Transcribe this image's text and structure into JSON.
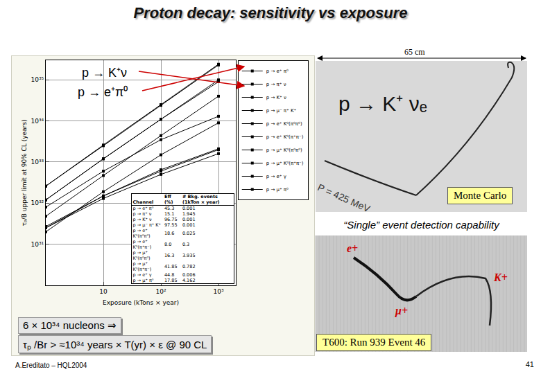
{
  "slide": {
    "title": "Proton decay: sensitivity vs exposure",
    "arrow_labels": [
      "p → K⁺ν",
      "p → e⁺π⁰"
    ],
    "formula_lines": [
      "6 × 10³⁴ nucleons ⇒",
      "τₚ /Br > ≈10³⁴ years × T(yr) × ε @ 90 CL"
    ],
    "footer": "A.Ereditato – HQL2004",
    "page": "41",
    "scale_label": "65 cm",
    "mc_title": "p → K⁺ νₑ",
    "mc_momentum": "P = 425 MeV",
    "mc_tag": "Monte Carlo",
    "caption": "“Single” event detection capability",
    "event_labels": [
      "e+",
      "K+",
      "μ+"
    ],
    "event_tag": "T600: Run 939 Event 46"
  },
  "table": {
    "header": [
      "Channel",
      "Eff (%)",
      "# Bkg. events (1kTon × year)"
    ],
    "rows": [
      [
        "p → e⁺ π⁰",
        "45.3",
        "0.001"
      ],
      [
        "p → π⁺ ν",
        "15.1",
        "1.945"
      ],
      [
        "p → K⁺ ν",
        "96.75",
        "0.001"
      ],
      [
        "p → μ⁻ π⁺ K⁺",
        "97.55",
        "0.001"
      ],
      [
        "p → e⁺ K⁰(π⁰π⁰)",
        "18.6",
        "0.025"
      ],
      [
        "p → e⁺ K⁰(π⁺π⁻)",
        "8.0",
        "0.3"
      ],
      [
        "p → μ⁺ K⁰(π⁰π⁰)",
        "16.3",
        "3.935"
      ],
      [
        "p → μ⁺ K⁰(π⁺π⁻)",
        "41.85",
        "0.782"
      ],
      [
        "p → e⁺ γ",
        "44.8",
        "0.006"
      ],
      [
        "p → μ⁺ π⁰",
        "17.85",
        "4.162"
      ]
    ]
  },
  "chart_data": {
    "type": "line",
    "x_label": "Exposure (kTons × year)",
    "y_label": "τₚ/B upper limit at 90% CL (years)",
    "x": [
      1,
      10,
      100,
      1000
    ],
    "series": [
      {
        "name": "p → e⁺ π⁰",
        "color": "#000000",
        "values": [
          1.2e+32,
          1.2e+33,
          1.1e+34,
          1e+35
        ]
      },
      {
        "name": "p → π⁺ ν",
        "color": "#000000",
        "values": [
          2.5e+31,
          1.3e+32,
          5e+32,
          1.6e+33
        ]
      },
      {
        "name": "p → K⁺ ν",
        "color": "#000000",
        "values": [
          2.6e+32,
          2.5e+33,
          2.4e+34,
          2.3e+35
        ]
      },
      {
        "name": "p → μ⁻ π⁺ K⁺",
        "color": "#000000",
        "values": [
          2.6e+32,
          2.6e+33,
          2.5e+34,
          2.4e+35
        ]
      },
      {
        "name": "p → e⁺ K⁰(π⁰π⁰)",
        "color": "#000000",
        "values": [
          4.8e+31,
          4.7e+32,
          4.4e+33,
          4e+34
        ]
      },
      {
        "name": "p → e⁺ K⁰(π⁺π⁻)",
        "color": "#000000",
        "values": [
          2e+31,
          1.9e+32,
          1.5e+33,
          9e+33
        ]
      },
      {
        "name": "p → μ⁺ K⁰(π⁰π⁰)",
        "color": "#000000",
        "values": [
          2.5e+31,
          1.5e+32,
          6e+32,
          2e+33
        ]
      },
      {
        "name": "p → μ⁺ K⁰(π⁺π⁻)",
        "color": "#000000",
        "values": [
          8e+31,
          6e+32,
          3.5e+33,
          1.3e+34
        ]
      },
      {
        "name": "p → e⁺ γ",
        "color": "#000000",
        "values": [
          1.2e+32,
          1.2e+33,
          1.1e+34,
          9e+34
        ]
      },
      {
        "name": "p → μ⁺ π⁰",
        "color": "#000000",
        "values": [
          2.7e+31,
          1.5e+32,
          6.5e+32,
          2.1e+33
        ]
      }
    ],
    "log": true,
    "grid": true,
    "legend": "right",
    "marker": "square",
    "line_style": "solid",
    "xlim": [
      1,
      2000
    ],
    "ylim": [
      1e+30,
      3e+35
    ],
    "xticks": [
      10,
      {
        "value": 100,
        "label": "10²"
      },
      {
        "value": 1000,
        "label": "10³"
      }
    ],
    "yticks": [
      {
        "value": 1e+31,
        "label": "10³¹"
      },
      {
        "value": 1e+32,
        "label": "10³²"
      },
      {
        "value": 1e+33,
        "label": "10³³"
      },
      {
        "value": 1e+34,
        "label": "10³⁴"
      },
      {
        "value": 1e+35,
        "label": "10³⁵"
      }
    ]
  }
}
